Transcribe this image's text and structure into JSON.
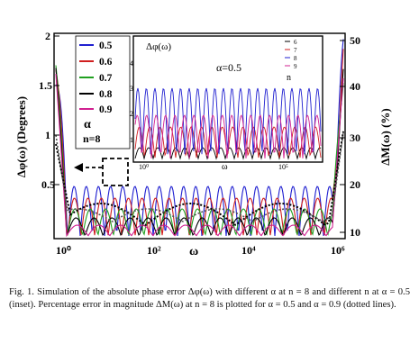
{
  "figure": {
    "main": {
      "ylabel_left": "Δφ(ω) (Degrees)",
      "ylabel_right": "ΔM(ω) (%)",
      "xlabel": "ω",
      "left_ticks": [
        "0.5",
        "1",
        "1.5",
        "2"
      ],
      "right_ticks": [
        "10",
        "20",
        "30",
        "40",
        "50"
      ],
      "x_ticks": [
        "10⁰",
        "10²",
        "10⁴",
        "10⁶"
      ]
    },
    "legend": {
      "entries": [
        {
          "label": "0.5",
          "color": "#1f1fd0"
        },
        {
          "label": "0.6",
          "color": "#d01f1f"
        },
        {
          "label": "0.7",
          "color": "#20a020"
        },
        {
          "label": "0.8",
          "color": "#000000"
        },
        {
          "label": "0.9",
          "color": "#d02090"
        }
      ],
      "alpha_label": "α",
      "n_label": "n=8"
    },
    "inset": {
      "title": "Δφ(ω)",
      "alpha_note": "α=0.5",
      "y_ticks": [
        "1",
        "2",
        "3",
        "4"
      ],
      "x_ticks": [
        "10⁰",
        "ω",
        "10⁵"
      ],
      "legend": [
        {
          "label": "6",
          "color": "#000000"
        },
        {
          "label": "7",
          "color": "#d01f1f"
        },
        {
          "label": "8",
          "color": "#1f1fd0"
        },
        {
          "label": "9",
          "color": "#d02090"
        }
      ],
      "legend_title": "n"
    }
  },
  "caption": {
    "text": "Fig. 1.   Simulation of the absolute phase error Δφ(ω) with different α at n = 8 and different n at α = 0.5 (inset). Percentage error in magnitude ΔM(ω) at n = 8 is plotted for α = 0.5 and α = 0.9 (dotted lines)."
  }
}
